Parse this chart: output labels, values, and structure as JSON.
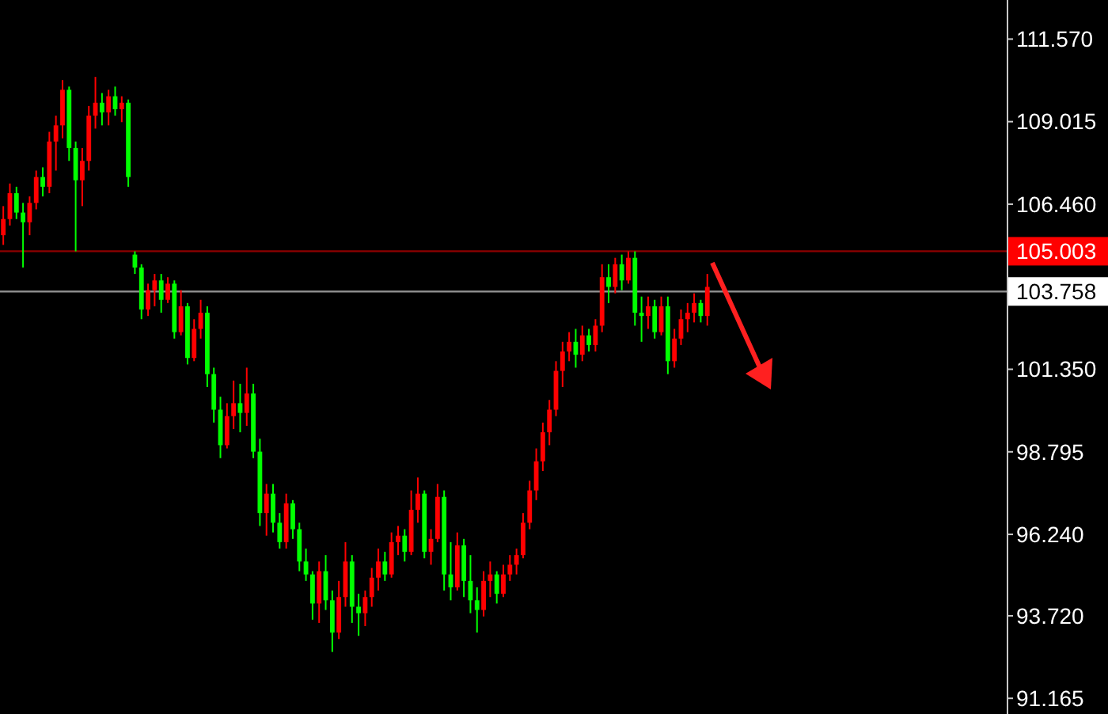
{
  "chart_data": {
    "type": "candlestick",
    "categories": [
      null,
      null,
      null,
      null,
      null,
      null,
      null,
      null,
      null,
      null,
      null,
      null,
      null,
      null,
      null,
      null,
      null,
      null,
      null,
      null,
      null,
      null,
      null,
      null,
      null,
      null,
      null,
      null,
      null,
      null,
      null,
      null,
      null,
      null,
      null,
      null,
      null,
      null,
      null,
      null,
      null,
      null,
      null,
      null,
      null,
      null,
      null,
      null,
      null,
      null,
      null,
      null,
      null,
      null,
      null,
      null,
      null,
      null,
      null,
      null,
      null,
      null,
      null,
      null,
      null,
      null,
      null,
      null,
      null,
      null,
      null,
      null,
      null,
      null,
      null,
      null,
      null,
      null,
      null,
      null,
      null,
      null,
      null,
      null,
      null,
      null,
      null,
      null,
      null,
      null,
      null,
      null,
      null,
      null,
      null,
      null,
      null,
      null,
      null,
      null,
      null,
      null,
      null,
      null,
      null,
      null,
      null,
      null,
      null,
      null,
      null,
      null,
      null,
      null,
      null,
      null,
      null,
      null,
      null,
      null,
      null,
      null,
      null,
      null,
      null,
      null,
      null,
      null,
      null,
      null,
      null,
      null,
      null,
      null,
      null,
      null,
      null,
      null,
      null,
      null,
      null,
      null,
      null,
      null,
      null,
      null,
      null,
      null,
      null,
      null,
      null,
      null,
      null
    ],
    "ohlc": [
      [
        105.5,
        106.4,
        105.2,
        106.0
      ],
      [
        106.0,
        107.1,
        105.8,
        106.8
      ],
      [
        106.8,
        107.0,
        106.0,
        106.2
      ],
      [
        106.2,
        106.5,
        104.5,
        105.9
      ],
      [
        105.9,
        106.7,
        105.5,
        106.5
      ],
      [
        106.5,
        107.5,
        106.3,
        107.3
      ],
      [
        107.3,
        107.6,
        106.7,
        107.0
      ],
      [
        107.0,
        108.7,
        106.8,
        108.4
      ],
      [
        108.4,
        109.2,
        107.5,
        108.9
      ],
      [
        108.9,
        110.3,
        108.5,
        110.0
      ],
      [
        110.0,
        110.1,
        107.8,
        108.2
      ],
      [
        108.2,
        108.4,
        105.0,
        107.2
      ],
      [
        107.2,
        108.2,
        106.4,
        107.8
      ],
      [
        107.8,
        109.5,
        107.5,
        109.2
      ],
      [
        109.2,
        110.4,
        108.8,
        109.6
      ],
      [
        109.6,
        109.9,
        108.9,
        109.3
      ],
      [
        109.3,
        110.0,
        108.9,
        109.8
      ],
      [
        109.8,
        110.1,
        109.2,
        109.4
      ],
      [
        109.4,
        109.8,
        109.0,
        109.6
      ],
      [
        109.6,
        109.7,
        107.0,
        107.3
      ],
      [
        104.9,
        105.0,
        104.3,
        104.5
      ],
      [
        104.5,
        104.6,
        102.9,
        103.2
      ],
      [
        103.2,
        104.0,
        103.0,
        103.8
      ],
      [
        103.8,
        104.3,
        103.3,
        104.1
      ],
      [
        104.1,
        104.3,
        103.1,
        103.5
      ],
      [
        103.5,
        104.2,
        103.4,
        104.0
      ],
      [
        104.0,
        104.1,
        102.3,
        102.5
      ],
      [
        102.5,
        103.8,
        102.4,
        103.3
      ],
      [
        103.3,
        103.4,
        101.5,
        101.7
      ],
      [
        101.7,
        102.9,
        101.6,
        102.6
      ],
      [
        102.6,
        103.5,
        102.3,
        103.1
      ],
      [
        103.1,
        103.3,
        100.8,
        101.2
      ],
      [
        101.2,
        101.4,
        99.7,
        100.1
      ],
      [
        100.1,
        100.5,
        98.6,
        99.0
      ],
      [
        99.0,
        100.3,
        98.9,
        99.9
      ],
      [
        99.9,
        101.0,
        99.5,
        100.3
      ],
      [
        100.3,
        100.9,
        99.4,
        100.0
      ],
      [
        100.0,
        101.4,
        99.6,
        100.6
      ],
      [
        100.6,
        100.9,
        98.6,
        98.8
      ],
      [
        98.8,
        99.2,
        96.5,
        96.9
      ],
      [
        96.9,
        97.8,
        96.2,
        97.5
      ],
      [
        97.5,
        97.8,
        96.3,
        96.6
      ],
      [
        96.6,
        96.9,
        95.8,
        96.0
      ],
      [
        96.0,
        97.5,
        95.8,
        97.2
      ],
      [
        97.2,
        97.3,
        96.1,
        96.4
      ],
      [
        96.4,
        96.6,
        95.1,
        95.4
      ],
      [
        95.4,
        95.8,
        94.8,
        95.0
      ],
      [
        95.0,
        95.1,
        93.6,
        94.1
      ],
      [
        94.1,
        95.4,
        93.5,
        95.1
      ],
      [
        95.1,
        95.6,
        93.9,
        94.2
      ],
      [
        94.2,
        94.5,
        92.6,
        93.2
      ],
      [
        93.2,
        94.8,
        93.0,
        94.3
      ],
      [
        94.3,
        96.0,
        94.0,
        95.4
      ],
      [
        95.4,
        95.6,
        93.5,
        94.0
      ],
      [
        94.0,
        94.4,
        93.1,
        93.8
      ],
      [
        93.8,
        94.5,
        93.4,
        94.3
      ],
      [
        94.3,
        95.2,
        94.0,
        94.9
      ],
      [
        94.9,
        95.8,
        94.5,
        95.4
      ],
      [
        95.4,
        95.7,
        94.8,
        95.0
      ],
      [
        95.0,
        96.3,
        94.9,
        96.0
      ],
      [
        96.0,
        96.5,
        95.6,
        96.2
      ],
      [
        96.2,
        96.4,
        95.4,
        95.7
      ],
      [
        95.7,
        97.6,
        95.6,
        97.0
      ],
      [
        97.0,
        98.0,
        96.6,
        97.5
      ],
      [
        97.5,
        97.6,
        95.5,
        95.7
      ],
      [
        95.7,
        96.4,
        95.3,
        96.1
      ],
      [
        96.1,
        97.8,
        96.0,
        97.4
      ],
      [
        97.4,
        97.6,
        94.5,
        95.0
      ],
      [
        95.0,
        96.0,
        94.2,
        94.6
      ],
      [
        94.6,
        96.3,
        94.5,
        95.9
      ],
      [
        95.9,
        96.1,
        94.3,
        94.8
      ],
      [
        94.8,
        95.6,
        93.8,
        94.2
      ],
      [
        94.2,
        94.6,
        93.2,
        93.9
      ],
      [
        93.9,
        95.1,
        93.7,
        94.8
      ],
      [
        94.8,
        95.4,
        94.3,
        95.0
      ],
      [
        95.0,
        95.1,
        94.1,
        94.4
      ],
      [
        94.4,
        95.3,
        94.3,
        95.0
      ],
      [
        95.0,
        95.6,
        94.8,
        95.3
      ],
      [
        95.3,
        95.8,
        95.0,
        95.6
      ],
      [
        95.6,
        96.9,
        95.5,
        96.6
      ],
      [
        96.6,
        97.9,
        96.4,
        97.6
      ],
      [
        97.6,
        98.9,
        97.3,
        98.5
      ],
      [
        98.5,
        99.7,
        98.2,
        99.4
      ],
      [
        99.4,
        100.4,
        99.0,
        100.1
      ],
      [
        100.1,
        101.6,
        99.9,
        101.3
      ],
      [
        101.3,
        102.2,
        100.8,
        101.9
      ],
      [
        101.9,
        102.5,
        101.6,
        102.2
      ],
      [
        102.2,
        102.6,
        101.4,
        101.8
      ],
      [
        101.8,
        102.7,
        101.6,
        102.4
      ],
      [
        102.4,
        102.6,
        101.9,
        102.1
      ],
      [
        102.1,
        102.9,
        101.9,
        102.7
      ],
      [
        102.7,
        104.6,
        102.5,
        104.2
      ],
      [
        104.2,
        104.6,
        103.4,
        103.9
      ],
      [
        103.9,
        104.8,
        103.7,
        104.6
      ],
      [
        104.6,
        104.9,
        103.8,
        104.1
      ],
      [
        104.1,
        105.0,
        104.0,
        104.8
      ],
      [
        104.8,
        105.0,
        102.7,
        103.1
      ],
      [
        103.1,
        103.6,
        102.2,
        103.0
      ],
      [
        103.0,
        103.6,
        102.6,
        103.3
      ],
      [
        103.3,
        103.5,
        102.3,
        102.5
      ],
      [
        102.5,
        103.6,
        102.4,
        103.3
      ],
      [
        103.3,
        103.6,
        101.2,
        101.6
      ],
      [
        101.6,
        102.6,
        101.4,
        102.3
      ],
      [
        102.3,
        103.2,
        102.1,
        102.9
      ],
      [
        102.9,
        103.4,
        102.5,
        103.1
      ],
      [
        103.1,
        103.7,
        102.8,
        103.4
      ],
      [
        103.4,
        103.5,
        102.8,
        103.0
      ],
      [
        103.0,
        104.3,
        102.7,
        103.9
      ],
      null,
      null,
      null,
      null,
      null,
      null,
      null,
      null,
      null,
      null,
      null,
      null,
      null,
      null,
      null,
      null,
      null,
      null,
      null,
      null,
      null,
      null,
      null,
      null,
      null,
      null,
      null,
      null,
      null,
      null,
      null,
      null,
      null,
      null,
      null,
      null,
      null,
      null,
      null,
      null,
      null,
      null,
      null,
      null,
      null
    ],
    "colors": [
      "#ff0000",
      "#ff0000",
      "#00ff00",
      "#00ff00",
      "#ff0000",
      "#ff0000",
      "#00ff00",
      "#ff0000",
      "#ff0000",
      "#ff0000",
      "#00ff00",
      "#00ff00",
      "#ff0000",
      "#ff0000",
      "#ff0000",
      "#00ff00",
      "#ff0000",
      "#00ff00",
      "#ff0000",
      "#00ff00",
      "#00ff00",
      "#00ff00",
      "#ff0000",
      "#ff0000",
      "#00ff00",
      "#ff0000",
      "#00ff00",
      "#ff0000",
      "#00ff00",
      "#ff0000",
      "#ff0000",
      "#00ff00",
      "#00ff00",
      "#00ff00",
      "#ff0000",
      "#ff0000",
      "#00ff00",
      "#ff0000",
      "#00ff00",
      "#00ff00",
      "#ff0000",
      "#00ff00",
      "#00ff00",
      "#ff0000",
      "#00ff00",
      "#00ff00",
      "#00ff00",
      "#00ff00",
      "#ff0000",
      "#00ff00",
      "#00ff00",
      "#ff0000",
      "#ff0000",
      "#00ff00",
      "#00ff00",
      "#ff0000",
      "#ff0000",
      "#ff0000",
      "#00ff00",
      "#ff0000",
      "#ff0000",
      "#00ff00",
      "#ff0000",
      "#ff0000",
      "#00ff00",
      "#ff0000",
      "#ff0000",
      "#00ff00",
      "#00ff00",
      "#ff0000",
      "#00ff00",
      "#00ff00",
      "#00ff00",
      "#ff0000",
      "#ff0000",
      "#00ff00",
      "#ff0000",
      "#ff0000",
      "#ff0000",
      "#ff0000",
      "#ff0000",
      "#ff0000",
      "#ff0000",
      "#ff0000",
      "#ff0000",
      "#ff0000",
      "#ff0000",
      "#00ff00",
      "#ff0000",
      "#00ff00",
      "#ff0000",
      "#ff0000",
      "#00ff00",
      "#ff0000",
      "#00ff00",
      "#ff0000",
      "#00ff00",
      "#00ff00",
      "#ff0000",
      "#00ff00",
      "#ff0000",
      "#00ff00",
      "#ff0000",
      "#ff0000",
      "#ff0000",
      "#ff0000",
      "#00ff00",
      "#ff0000",
      null,
      null,
      null,
      null,
      null,
      null,
      null,
      null,
      null,
      null,
      null,
      null,
      null,
      null,
      null,
      null,
      null,
      null,
      null,
      null,
      null,
      null,
      null,
      null,
      null,
      null,
      null,
      null,
      null,
      null,
      null,
      null,
      null,
      null,
      null,
      null,
      null,
      null,
      null,
      null,
      null,
      null,
      null,
      null,
      null
    ],
    "ylim": [
      90.68,
      112.78
    ],
    "yticks": [
      {
        "value": 91.165,
        "label": "91.165"
      },
      {
        "value": 93.72,
        "label": "93.720"
      },
      {
        "value": 96.24,
        "label": "96.240"
      },
      {
        "value": 98.795,
        "label": "98.795"
      },
      {
        "value": 101.35,
        "label": "101.350"
      },
      {
        "value": 106.46,
        "label": "106.460"
      },
      {
        "value": 109.015,
        "label": "109.015"
      },
      {
        "value": 111.57,
        "label": "111.570"
      }
    ],
    "tick_labels": "y",
    "ref_lines": [
      {
        "axis": "y",
        "value": 105.003,
        "label": "105.003",
        "color": "#ff0000"
      },
      {
        "axis": "y",
        "value": 103.758,
        "label": "103.758",
        "color": "#ffffff"
      }
    ]
  }
}
